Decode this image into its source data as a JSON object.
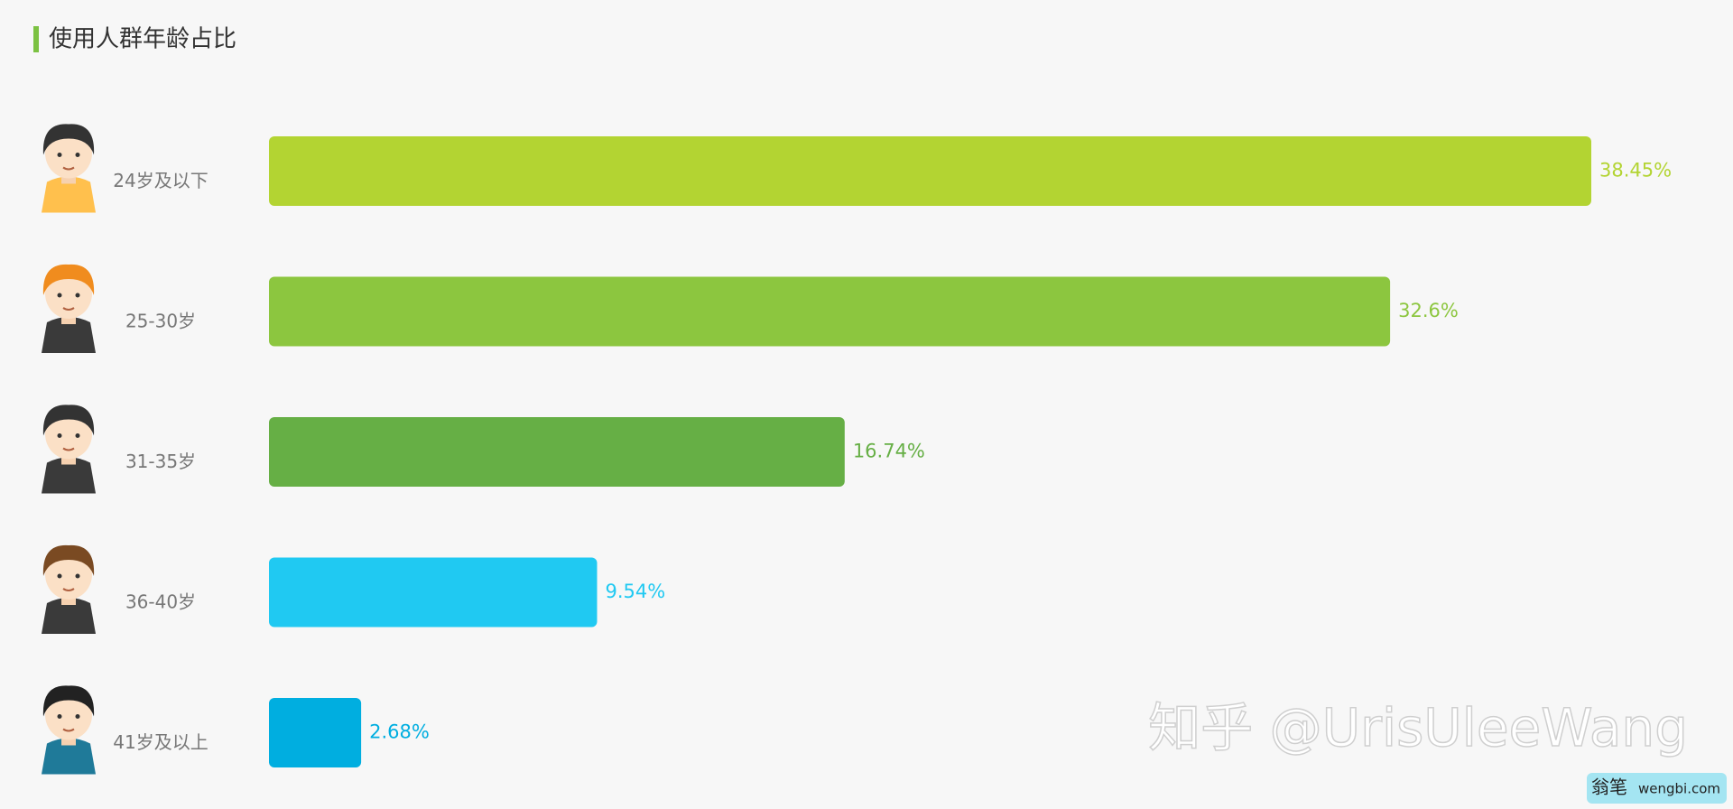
{
  "chart_data": {
    "type": "bar",
    "orientation": "horizontal",
    "title": "使用人群年龄占比",
    "categories": [
      "24岁及以下",
      "25-30岁",
      "31-35岁",
      "36-40岁",
      "41岁及以上"
    ],
    "values": [
      38.45,
      32.6,
      16.74,
      9.54,
      2.68
    ],
    "value_labels": [
      "38.45%",
      "32.6%",
      "16.74%",
      "9.54%",
      "2.68%"
    ],
    "colors": [
      "#b3d432",
      "#8cc63f",
      "#66af45",
      "#20c9f2",
      "#00aee0"
    ],
    "grid": false
  },
  "watermark": {
    "text": "知乎 @UrisUleeWang",
    "logo": "翁笔",
    "site": "wengbi.com"
  }
}
